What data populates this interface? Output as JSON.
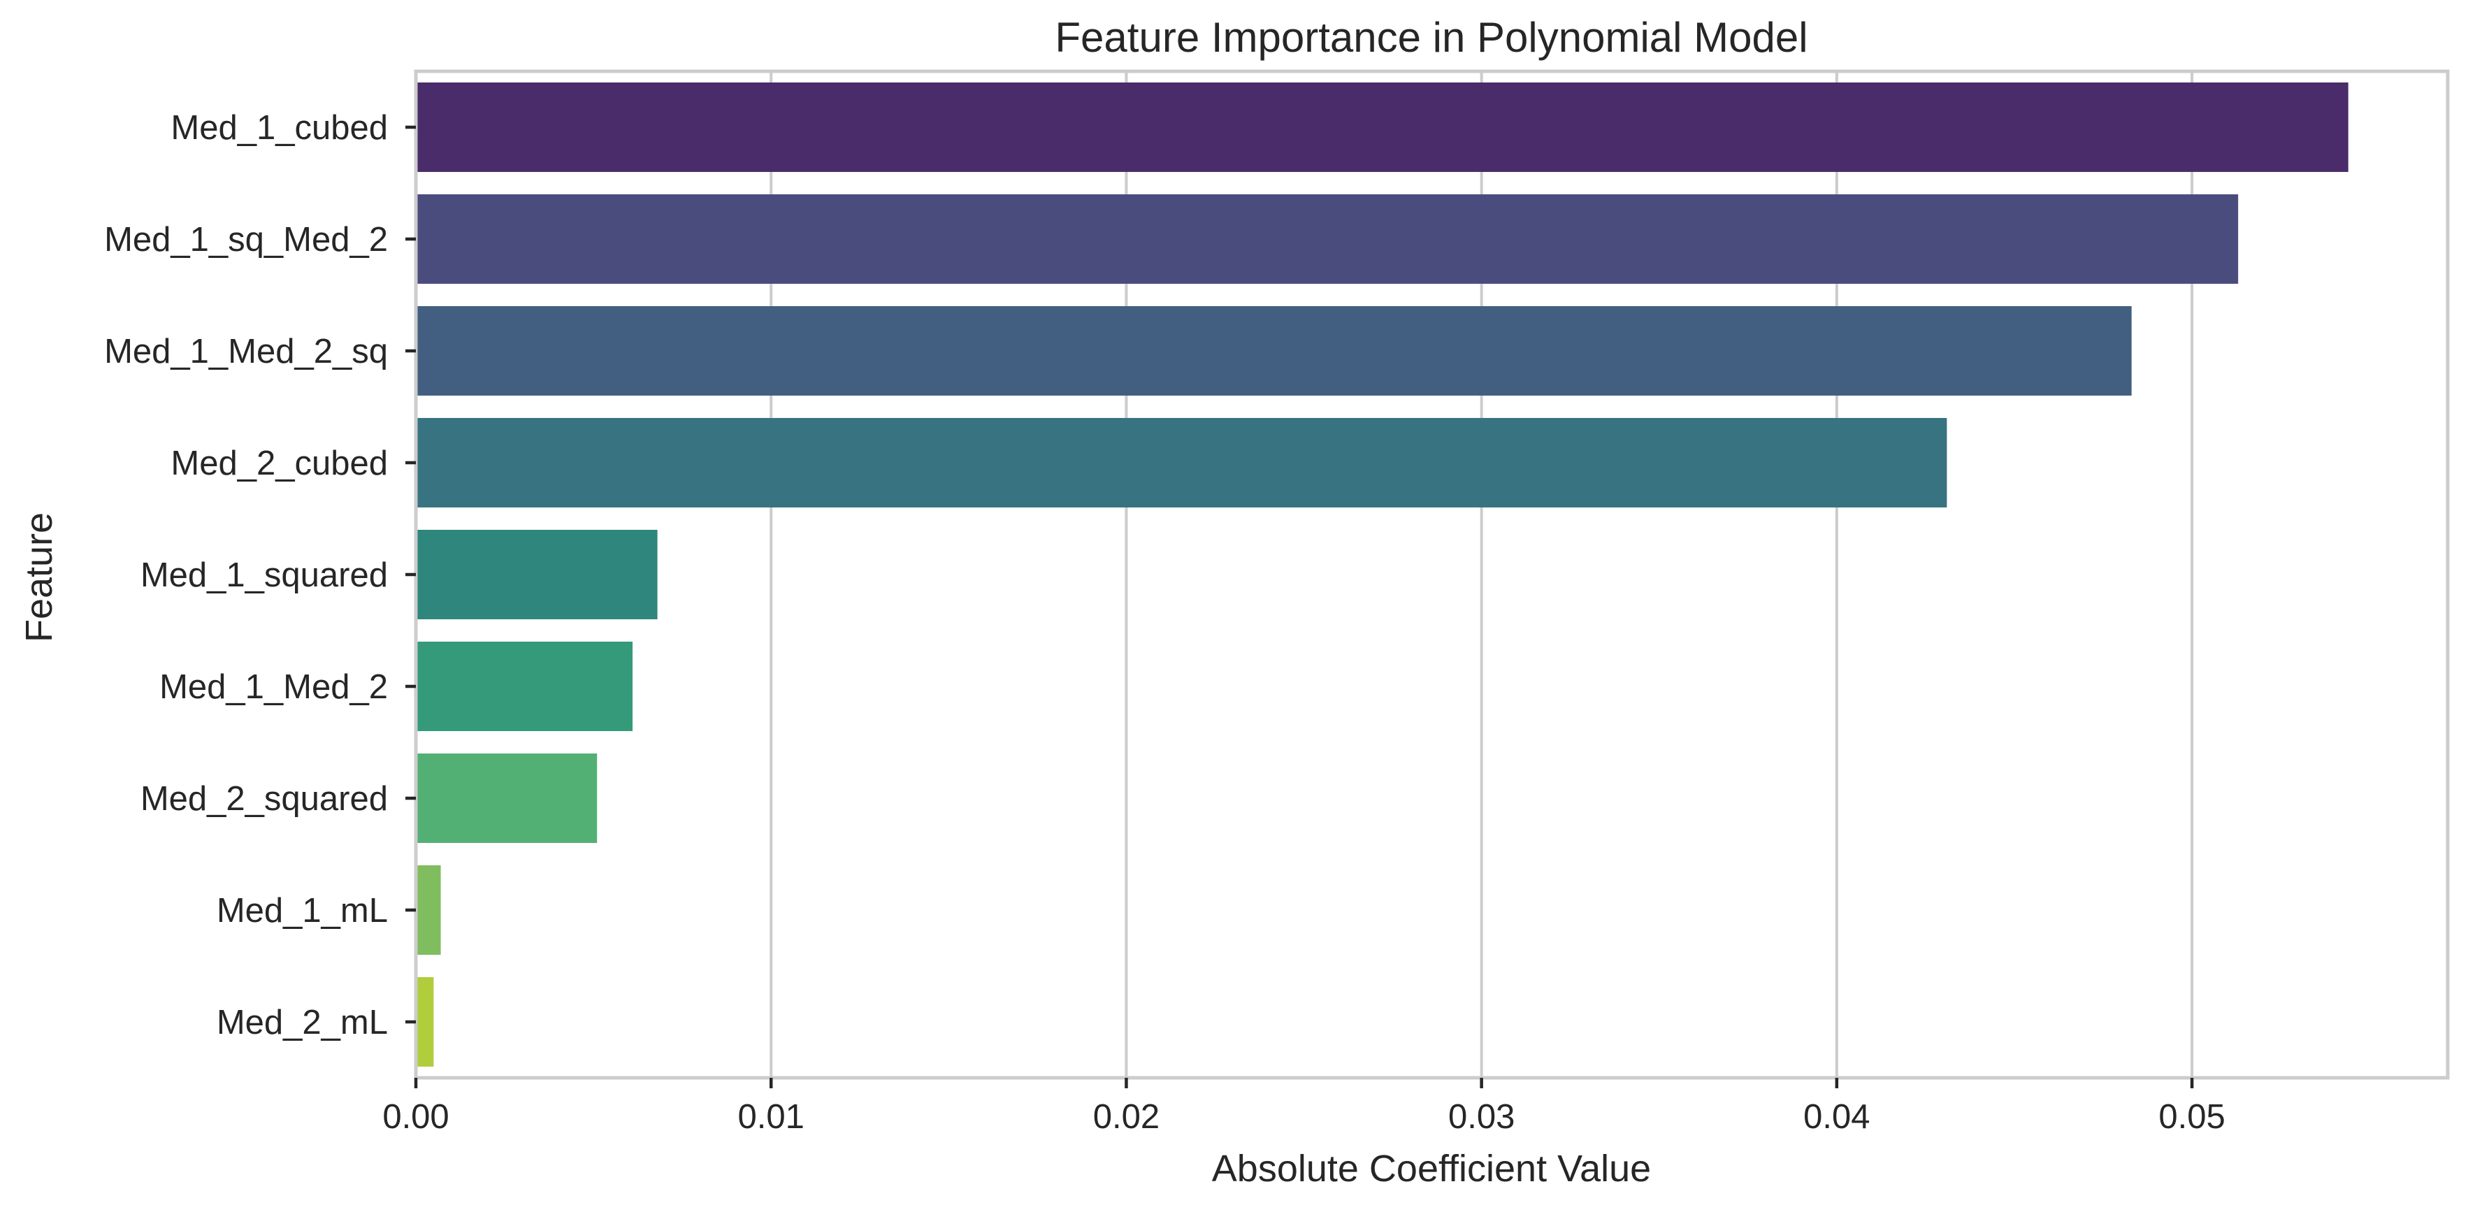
{
  "chart_data": {
    "type": "bar",
    "orientation": "horizontal",
    "title": "Feature Importance in Polynomial Model",
    "xlabel": "Absolute Coefficient Value",
    "ylabel": "Feature",
    "xlim": [
      0,
      0.0572
    ],
    "grid": "vertical",
    "legend": "none",
    "xticks": [
      "0.00",
      "0.01",
      "0.02",
      "0.03",
      "0.04",
      "0.05"
    ],
    "xtick_values": [
      0,
      0.01,
      0.02,
      0.03,
      0.04,
      0.05
    ],
    "categories": [
      "Med_1_cubed",
      "Med_1_sq_Med_2",
      "Med_1_Med_2_sq",
      "Med_2_cubed",
      "Med_1_squared",
      "Med_1_Med_2",
      "Med_2_squared",
      "Med_1_mL",
      "Med_2_mL"
    ],
    "values": [
      0.0544,
      0.0513,
      0.0483,
      0.0431,
      0.0068,
      0.0061,
      0.0051,
      0.0007,
      0.0005
    ],
    "colors": [
      "#4a2c6b",
      "#4b4c7e",
      "#425f81",
      "#377380",
      "#2f867d",
      "#359a79",
      "#52b074",
      "#80bd5f",
      "#b0cd3b"
    ]
  }
}
